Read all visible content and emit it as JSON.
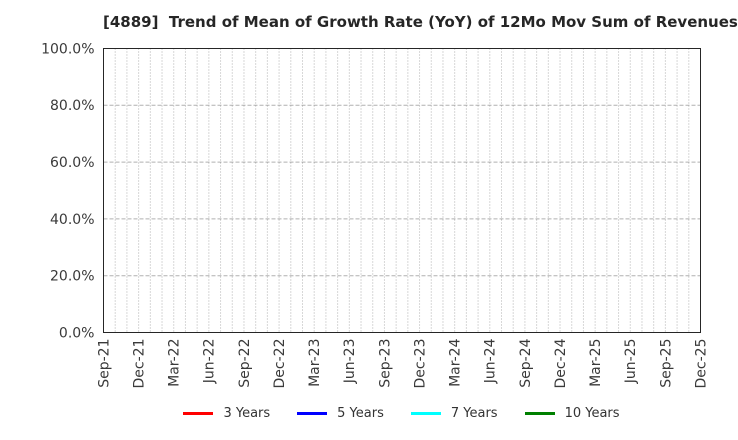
{
  "header": {
    "title": "[4889]  Trend of Mean of Growth Rate (YoY) of 12Mo Mov Sum of Revenues"
  },
  "legend": {
    "items": [
      {
        "label": "3 Years",
        "color": "#ff0000"
      },
      {
        "label": "5 Years",
        "color": "#0000ff"
      },
      {
        "label": "7 Years",
        "color": "#00ffff"
      },
      {
        "label": "10 Years",
        "color": "#008000"
      }
    ]
  },
  "colors": {
    "background": "#ffffff",
    "plot_border": "#262626",
    "grid": "#b0b0b0",
    "tick_text": "#3a3a3a",
    "title_text": "#262626"
  },
  "chart_data": {
    "type": "line",
    "title": "[4889]  Trend of Mean of Growth Rate (YoY) of 12Mo Mov Sum of Revenues",
    "xlabel": "",
    "ylabel": "",
    "ylim": [
      0,
      100
    ],
    "y_ticks": [
      {
        "value": 0,
        "label": "0.0%"
      },
      {
        "value": 20,
        "label": "20.0%"
      },
      {
        "value": 40,
        "label": "40.0%"
      },
      {
        "value": 60,
        "label": "60.0%"
      },
      {
        "value": 80,
        "label": "80.0%"
      },
      {
        "value": 100,
        "label": "100.0%"
      }
    ],
    "x_tick_labels": [
      "Sep-21",
      "Dec-21",
      "Mar-22",
      "Jun-22",
      "Sep-22",
      "Dec-22",
      "Mar-23",
      "Jun-23",
      "Sep-23",
      "Dec-23",
      "Mar-24",
      "Jun-24",
      "Sep-24",
      "Dec-24",
      "Mar-25",
      "Jun-25",
      "Sep-25",
      "Dec-25"
    ],
    "x_tick_label_rotation_deg": 90,
    "x_minor_gridlines_per_tick": 3,
    "grid": true,
    "gridline_style": {
      "vertical": "dotted",
      "horizontal": "dashed"
    },
    "legend_position": "bottom",
    "series": [
      {
        "name": "3 Years",
        "color": "#ff0000",
        "values": []
      },
      {
        "name": "5 Years",
        "color": "#0000ff",
        "values": []
      },
      {
        "name": "7 Years",
        "color": "#00ffff",
        "values": []
      },
      {
        "name": "10 Years",
        "color": "#008000",
        "values": []
      }
    ]
  }
}
